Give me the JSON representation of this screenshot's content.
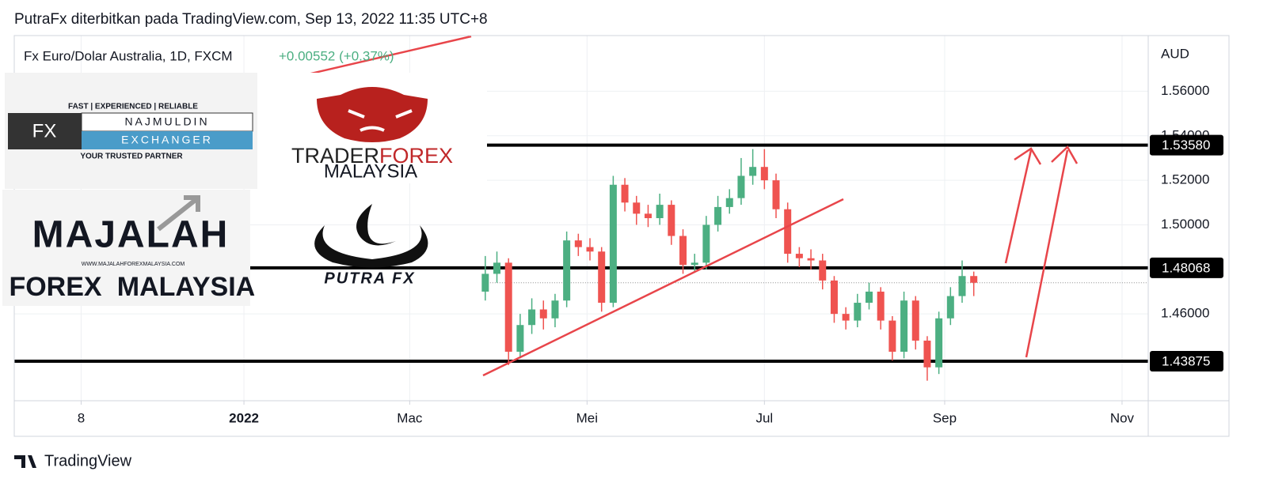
{
  "header": {
    "title": "PutraFx diterbitkan pada TradingView.com, Sep 13, 2022 11:35 UTC+8"
  },
  "chart_data": {
    "type": "candlestick",
    "symbol": "Fx Euro/Dolar Australia, 1D, FXCM",
    "change": "+0.00552 (+0.37%)",
    "currency": "AUD",
    "x": [
      26,
      30,
      34,
      38,
      42,
      46,
      50,
      54,
      58,
      62,
      66,
      70,
      74,
      78,
      82,
      86,
      90,
      94,
      98,
      102,
      106,
      110,
      114,
      118,
      122,
      126,
      130,
      134,
      138,
      142,
      146,
      150,
      154,
      158,
      162,
      166,
      170,
      174,
      178,
      182,
      186,
      190,
      194
    ],
    "open": [
      1.47,
      1.478,
      1.483,
      1.443,
      1.455,
      1.462,
      1.458,
      1.466,
      1.493,
      1.49,
      1.488,
      1.465,
      1.518,
      1.51,
      1.505,
      1.503,
      1.509,
      1.495,
      1.482,
      1.483,
      1.5,
      1.508,
      1.512,
      1.522,
      1.526,
      1.52,
      1.507,
      1.487,
      1.485,
      1.484,
      1.475,
      1.46,
      1.457,
      1.465,
      1.47,
      1.457,
      1.443,
      1.466,
      1.448,
      1.436,
      1.458,
      1.468,
      1.477
    ],
    "high": [
      1.486,
      1.488,
      1.485,
      1.46,
      1.467,
      1.466,
      1.469,
      1.497,
      1.496,
      1.494,
      1.49,
      1.522,
      1.521,
      1.513,
      1.509,
      1.514,
      1.511,
      1.498,
      1.487,
      1.504,
      1.513,
      1.516,
      1.53,
      1.534,
      1.534,
      1.523,
      1.51,
      1.49,
      1.489,
      1.487,
      1.477,
      1.463,
      1.469,
      1.474,
      1.472,
      1.459,
      1.47,
      1.468,
      1.45,
      1.461,
      1.472,
      1.484,
      1.479
    ],
    "low": [
      1.466,
      1.474,
      1.437,
      1.44,
      1.451,
      1.453,
      1.454,
      1.463,
      1.486,
      1.484,
      1.461,
      1.463,
      1.506,
      1.5,
      1.499,
      1.5,
      1.491,
      1.478,
      1.479,
      1.48,
      1.497,
      1.505,
      1.509,
      1.518,
      1.516,
      1.503,
      1.483,
      1.481,
      1.48,
      1.471,
      1.456,
      1.453,
      1.454,
      1.462,
      1.453,
      1.439,
      1.44,
      1.444,
      1.43,
      1.433,
      1.455,
      1.465,
      1.468
    ],
    "close": [
      1.478,
      1.483,
      1.443,
      1.455,
      1.462,
      1.458,
      1.466,
      1.493,
      1.49,
      1.488,
      1.465,
      1.518,
      1.51,
      1.505,
      1.503,
      1.509,
      1.495,
      1.482,
      1.483,
      1.5,
      1.508,
      1.512,
      1.522,
      1.526,
      1.52,
      1.507,
      1.487,
      1.485,
      1.484,
      1.475,
      1.46,
      1.457,
      1.465,
      1.47,
      1.457,
      1.443,
      1.466,
      1.448,
      1.436,
      1.458,
      1.468,
      1.477,
      1.474
    ],
    "up_color": "#4caf82",
    "down_color": "#ef5350",
    "xlim": [
      -136,
      254
    ],
    "xticks": [
      {
        "value": -113,
        "label": "8"
      },
      {
        "value": -57,
        "label": "2022"
      },
      {
        "value": 0,
        "label": "Mac"
      },
      {
        "value": 61,
        "label": "Mei"
      },
      {
        "value": 122,
        "label": "Jul"
      },
      {
        "value": 184,
        "label": "Sep"
      },
      {
        "value": 245,
        "label": "Nov"
      }
    ],
    "ylim": [
      1.421,
      1.585
    ],
    "yticks": [
      {
        "value": 1.46,
        "label": "1.46000"
      },
      {
        "value": 1.5,
        "label": "1.50000"
      },
      {
        "value": 1.52,
        "label": "1.52000"
      },
      {
        "value": 1.54,
        "label": "1.54000"
      },
      {
        "value": 1.56,
        "label": "1.56000"
      }
    ],
    "levels": [
      {
        "value": 1.5358,
        "label": "1.53580"
      },
      {
        "value": 1.48068,
        "label": "1.48068"
      },
      {
        "value": 1.43875,
        "label": "1.43875"
      }
    ],
    "grid": true
  },
  "logos": {
    "najmuldin": {
      "tagline": "FAST | EXPERIENCED | RELIABLE",
      "fx": "FX",
      "name": "NAJMULDIN",
      "sub": "EXCHANGER",
      "slogan": "YOUR TRUSTED PARTNER"
    },
    "traderforex": {
      "a": "TRADER",
      "b": "FOREX",
      "c": "MALAYSIA"
    },
    "majalah": {
      "a": "MAJALAH",
      "url": "WWW.MAJALAHFOREXMALAYSIA.COM",
      "b": "FOREX",
      "c": "MALAYSIA"
    },
    "putra": {
      "name": "PUTRA FX"
    }
  },
  "footer": {
    "brand": "TradingView"
  }
}
